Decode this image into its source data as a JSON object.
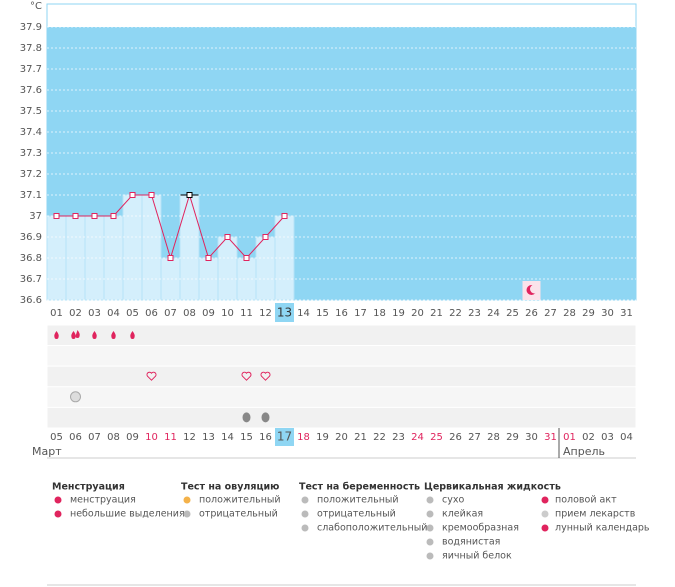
{
  "chart_data": {
    "type": "line",
    "y_label": "°C",
    "categories": [
      "01",
      "02",
      "03",
      "04",
      "05",
      "06",
      "07",
      "08",
      "09",
      "10",
      "11",
      "12",
      "13",
      "14",
      "15",
      "16",
      "17",
      "18",
      "19",
      "20",
      "21",
      "22",
      "23",
      "24",
      "25",
      "26",
      "27",
      "28",
      "29",
      "30",
      "31"
    ],
    "values": [
      37.0,
      37.0,
      37.0,
      37.0,
      37.1,
      37.1,
      36.8,
      37.1,
      36.8,
      36.9,
      36.8,
      36.9,
      37.0,
      null,
      null,
      null,
      null,
      null,
      null,
      null,
      null,
      null,
      null,
      null,
      null,
      null,
      null,
      null,
      null,
      null,
      null
    ],
    "ylim": [
      36.6,
      38.0
    ],
    "yticks": [
      36.6,
      36.7,
      36.8,
      36.9,
      {
        "value": 37.0,
        "label": "37"
      },
      37.1,
      37.2,
      37.3,
      37.4,
      37.5,
      37.6,
      37.7,
      37.8,
      37.9
    ],
    "line_color": "#e0245e",
    "bar_color": "#d4effc",
    "background_color": "#8fd6f3",
    "grid": true,
    "highlight_index": 12,
    "selected_index": 7,
    "moon_index": 25,
    "dates": [
      "05",
      "06",
      "07",
      "08",
      "09",
      "10",
      "11",
      "12",
      "13",
      "14",
      "15",
      "16",
      "17",
      "18",
      "19",
      "20",
      "21",
      "22",
      "23",
      "24",
      "25",
      "26",
      "27",
      "28",
      "29",
      "30",
      "31",
      "01",
      "02",
      "03",
      "04"
    ],
    "weekend": [
      false,
      false,
      false,
      false,
      false,
      true,
      true,
      false,
      false,
      false,
      false,
      false,
      false,
      true,
      false,
      false,
      false,
      false,
      false,
      true,
      true,
      false,
      false,
      false,
      false,
      false,
      true,
      true,
      false,
      false,
      false
    ],
    "months": [
      {
        "label": "Март",
        "index": 0
      },
      {
        "label": "Апрель",
        "index": 27
      }
    ],
    "symbol_rows": [
      {
        "kind": "drop",
        "days": [
          0,
          2,
          3,
          4
        ],
        "big_days": [
          1
        ]
      },
      {
        "kind": "none",
        "days": []
      },
      {
        "kind": "heart",
        "days": [
          5,
          10,
          11
        ]
      },
      {
        "kind": "pill",
        "days": [
          1
        ]
      },
      {
        "kind": "egg",
        "days": [
          10,
          11
        ]
      }
    ]
  },
  "legend": {
    "groups": [
      {
        "title": "Менструация",
        "items": [
          "менструация",
          "небольшие выделения"
        ]
      },
      {
        "title": "Тест на овуляцию",
        "items": [
          "положительный",
          "отрицательный"
        ]
      },
      {
        "title": "Тест на беременность",
        "items": [
          "положительный",
          "отрицательный",
          "слабоположительный"
        ]
      },
      {
        "title": "Цервикальная жидкость",
        "items": [
          "сухо",
          "клейкая",
          "кремообразная",
          "водянистая",
          "яичный белок"
        ]
      }
    ],
    "extra_items": [
      "половой акт",
      "прием лекарств",
      "лунный календарь"
    ]
  }
}
